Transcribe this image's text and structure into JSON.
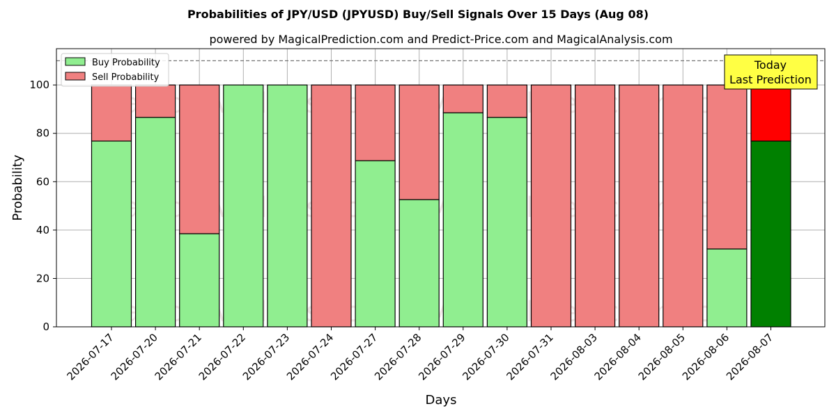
{
  "chart_data": {
    "type": "bar",
    "stacked": true,
    "title": "Probabilities of JPY/USD (JPYUSD) Buy/Sell Signals Over 15 Days (Aug 08)",
    "subtitle": "powered by MagicalPrediction.com and Predict-Price.com and MagicalAnalysis.com",
    "xlabel": "Days",
    "ylabel": "Probability",
    "ylim": [
      0,
      115
    ],
    "yticks": [
      0,
      20,
      40,
      60,
      80,
      100
    ],
    "grid": true,
    "legend_position": "top-left",
    "reference_line": {
      "value": 110,
      "style": "dashed"
    },
    "categories": [
      "2026-07-17",
      "2026-07-20",
      "2026-07-21",
      "2026-07-22",
      "2026-07-23",
      "2026-07-24",
      "2026-07-27",
      "2026-07-28",
      "2026-07-29",
      "2026-07-30",
      "2026-07-31",
      "2026-08-03",
      "2026-08-04",
      "2026-08-05",
      "2026-08-06",
      "2026-08-07"
    ],
    "series": [
      {
        "name": "Buy Probability",
        "values": [
          76.8,
          86.6,
          38.5,
          100,
          100,
          0,
          68.7,
          52.6,
          88.5,
          86.6,
          0,
          0,
          0,
          0,
          32.2,
          76.8
        ]
      },
      {
        "name": "Sell Probability",
        "values": [
          23.2,
          13.4,
          61.5,
          0,
          0,
          100,
          31.3,
          47.4,
          11.5,
          13.4,
          100,
          100,
          100,
          100,
          67.8,
          23.2
        ]
      }
    ],
    "colors": {
      "buy": "#90ee90",
      "sell": "#f08080",
      "buy_highlight": "#008000",
      "sell_highlight": "#ff0000",
      "annotation_bg": "#ffff44"
    },
    "highlight_index": 15,
    "annotation": {
      "line1": "Today",
      "line2": "Last Prediction"
    },
    "watermarks": [
      "MagicalAnalysis.com",
      "MagicalPrediction.com"
    ]
  }
}
